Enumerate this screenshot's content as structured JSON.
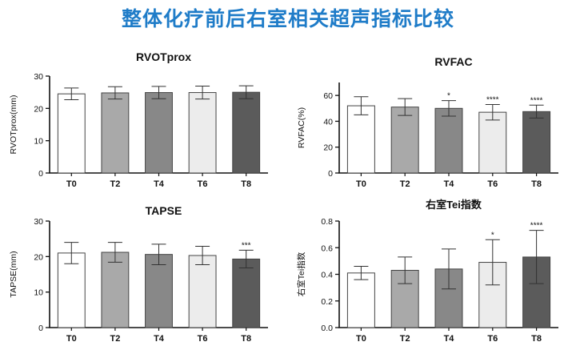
{
  "page": {
    "title": "整体化疗前后右室相关超声指标比较"
  },
  "chart_data": [
    {
      "id": "rvotprox",
      "type": "bar",
      "title": "RVOTprox",
      "ylabel": "RVOTprox(mm)",
      "xlabel": "",
      "categories": [
        "T0",
        "T2",
        "T4",
        "T6",
        "T8"
      ],
      "values": [
        24.5,
        24.8,
        24.9,
        24.9,
        25.0
      ],
      "errors": [
        1.8,
        1.9,
        1.9,
        2.0,
        2.0
      ],
      "significance": [
        "",
        "",
        "",
        "",
        ""
      ],
      "ylim": [
        0,
        30
      ],
      "yticks": [
        0,
        10,
        20,
        30
      ],
      "ytick_labels": [
        "0",
        "10",
        "20",
        "30"
      ]
    },
    {
      "id": "rvfac",
      "type": "bar",
      "title": "RVFAC",
      "ylabel": "RVFAC(%)",
      "xlabel": "",
      "categories": [
        "T0",
        "T2",
        "T4",
        "T6",
        "T8"
      ],
      "values": [
        52,
        51,
        50,
        47,
        47.5
      ],
      "errors": [
        7,
        6.5,
        6,
        6,
        5
      ],
      "significance": [
        "",
        "",
        "*",
        "****",
        "****"
      ],
      "ylim": [
        0,
        70
      ],
      "yticks": [
        0,
        20,
        40,
        60
      ],
      "ytick_labels": [
        "0",
        "20",
        "40",
        "60"
      ]
    },
    {
      "id": "tapse",
      "type": "bar",
      "title": "TAPSE",
      "ylabel": "TAPSE(mm)",
      "xlabel": "",
      "categories": [
        "T0",
        "T2",
        "T4",
        "T6",
        "T8"
      ],
      "values": [
        21,
        21.2,
        20.6,
        20.3,
        19.3
      ],
      "errors": [
        3,
        2.8,
        2.9,
        2.6,
        2.5
      ],
      "significance": [
        "",
        "",
        "",
        "",
        "***"
      ],
      "ylim": [
        0,
        30
      ],
      "yticks": [
        0,
        10,
        20,
        30
      ],
      "ytick_labels": [
        "0",
        "10",
        "20",
        "30"
      ]
    },
    {
      "id": "tei",
      "type": "bar",
      "title": "右室Tei指数",
      "ylabel": "右室Tei指数",
      "xlabel": "",
      "categories": [
        "T0",
        "T2",
        "T4",
        "T6",
        "T8"
      ],
      "values": [
        0.41,
        0.43,
        0.44,
        0.49,
        0.53
      ],
      "errors": [
        0.05,
        0.1,
        0.15,
        0.17,
        0.2
      ],
      "significance": [
        "",
        "",
        "",
        "*",
        "****"
      ],
      "ylim": [
        0,
        0.8
      ],
      "yticks": [
        0,
        0.2,
        0.4,
        0.6,
        0.8
      ],
      "ytick_labels": [
        "0.0",
        "0.2",
        "0.4",
        "0.6",
        "0.8"
      ]
    }
  ],
  "style": {
    "bar_fills": [
      "#ffffff",
      "#a9a9a9",
      "#888888",
      "#ececec",
      "#5b5b5b"
    ],
    "bar_stroke": "#444444",
    "axis_color": "#111111",
    "title_color": "#1f7cc8"
  }
}
